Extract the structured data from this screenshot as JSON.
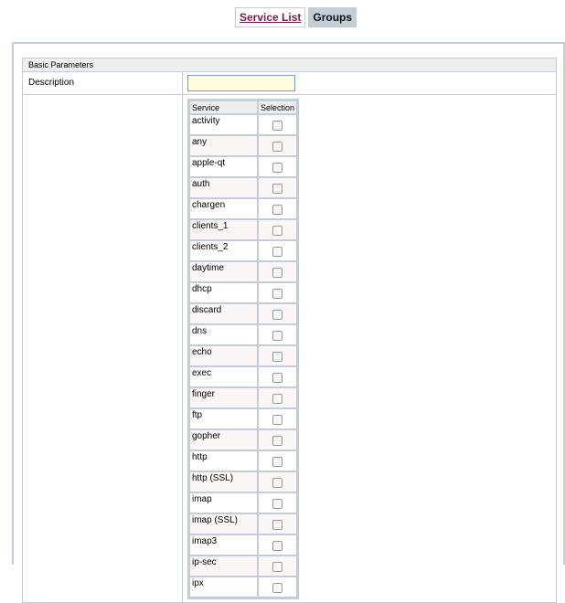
{
  "tabs": [
    {
      "label": "Service List",
      "active": false
    },
    {
      "label": "Groups",
      "active": true
    }
  ],
  "section_title": "Basic Parameters",
  "description": {
    "label": "Description",
    "value": ""
  },
  "services_table": {
    "headers": [
      "Service",
      "Selection"
    ],
    "rows": [
      "activity",
      "any",
      "apple-qt",
      "auth",
      "chargen",
      "clients_1",
      "clients_2",
      "daytime",
      "dhcp",
      "discard",
      "dns",
      "echo",
      "exec",
      "finger",
      "ftp",
      "gopher",
      "http",
      "http (SSL)",
      "imap",
      "imap (SSL)",
      "imap3",
      "ip-sec",
      "ipx"
    ]
  }
}
